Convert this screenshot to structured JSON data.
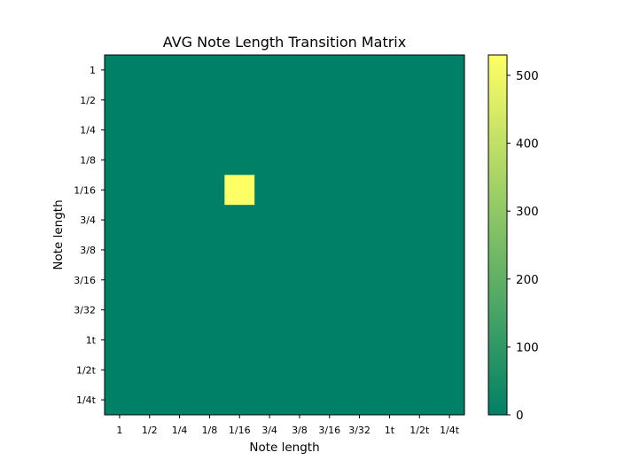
{
  "chart_data": {
    "type": "heatmap",
    "title": "AVG Note Length Transition Matrix",
    "xlabel": "Note length",
    "ylabel": "Note length",
    "x_categories": [
      "1",
      "1/2",
      "1/4",
      "1/8",
      "1/16",
      "3/4",
      "3/8",
      "3/16",
      "3/32",
      "1t",
      "1/2t",
      "1/4t"
    ],
    "y_categories": [
      "1",
      "1/2",
      "1/4",
      "1/8",
      "1/16",
      "3/4",
      "3/8",
      "3/16",
      "3/32",
      "1t",
      "1/2t",
      "1/4t"
    ],
    "values": [
      [
        0,
        0,
        0,
        0,
        0,
        0,
        0,
        0,
        0,
        0,
        0,
        0
      ],
      [
        0,
        0,
        0,
        0,
        0,
        0,
        0,
        0,
        0,
        0,
        0,
        0
      ],
      [
        0,
        0,
        0,
        0,
        0,
        0,
        0,
        0,
        0,
        0,
        0,
        0
      ],
      [
        0,
        0,
        0,
        0,
        0,
        0,
        0,
        0,
        0,
        0,
        0,
        0
      ],
      [
        0,
        0,
        0,
        0,
        530,
        0,
        0,
        0,
        0,
        0,
        0,
        0
      ],
      [
        0,
        0,
        0,
        0,
        0,
        0,
        0,
        0,
        0,
        0,
        0,
        0
      ],
      [
        0,
        0,
        0,
        0,
        0,
        0,
        0,
        0,
        0,
        0,
        0,
        0
      ],
      [
        0,
        0,
        0,
        0,
        0,
        0,
        0,
        0,
        0,
        0,
        0,
        0
      ],
      [
        0,
        0,
        0,
        0,
        0,
        0,
        0,
        0,
        0,
        0,
        0,
        0
      ],
      [
        0,
        0,
        0,
        0,
        0,
        0,
        0,
        0,
        0,
        0,
        0,
        0
      ],
      [
        0,
        0,
        0,
        0,
        0,
        0,
        0,
        0,
        0,
        0,
        0,
        0
      ],
      [
        0,
        0,
        0,
        0,
        0,
        0,
        0,
        0,
        0,
        0,
        0,
        0
      ]
    ],
    "colorbar": {
      "range": [
        0,
        530
      ],
      "ticks": [
        0,
        100,
        200,
        300,
        400,
        500
      ],
      "colormap": "summer",
      "color_low": "#008066",
      "color_high": "#ffff66",
      "placement": "right"
    },
    "grid": false
  }
}
